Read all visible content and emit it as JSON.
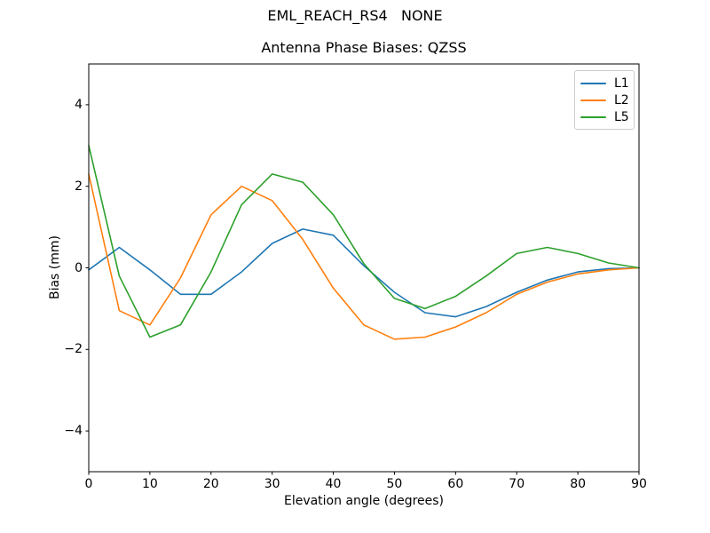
{
  "chart_data": {
    "type": "line",
    "suptitle": "EML_REACH_RS4   NONE",
    "title": "Antenna Phase Biases: QZSS",
    "xlabel": "Elevation angle (degrees)",
    "ylabel": "Bias (mm)",
    "xlim": [
      0,
      90
    ],
    "ylim": [
      -5,
      5
    ],
    "xticks": [
      0,
      10,
      20,
      30,
      40,
      50,
      60,
      70,
      80,
      90
    ],
    "xtick_labels": [
      "0",
      "10",
      "20",
      "30",
      "40",
      "50",
      "60",
      "70",
      "80",
      "90"
    ],
    "yticks": [
      -4,
      -2,
      0,
      2,
      4
    ],
    "ytick_labels": [
      "−4",
      "−2",
      "0",
      "2",
      "4"
    ],
    "grid": false,
    "background": "#ffffff",
    "axis_color": "#000000",
    "legend": {
      "position": "upper right",
      "entries": [
        "L1",
        "L2",
        "L5"
      ]
    },
    "x": [
      0,
      5,
      10,
      15,
      20,
      25,
      30,
      35,
      40,
      45,
      50,
      55,
      60,
      65,
      70,
      75,
      80,
      85,
      90
    ],
    "series": [
      {
        "name": "L1",
        "color": "#1f77b4",
        "values": [
          -0.05,
          0.5,
          -0.05,
          -0.65,
          -0.65,
          -0.1,
          0.6,
          0.95,
          0.8,
          0.05,
          -0.6,
          -1.1,
          -1.2,
          -0.95,
          -0.6,
          -0.3,
          -0.1,
          -0.02,
          0.0
        ]
      },
      {
        "name": "L2",
        "color": "#ff7f0e",
        "values": [
          2.3,
          -1.05,
          -1.4,
          -0.25,
          1.3,
          2.0,
          1.65,
          0.7,
          -0.5,
          -1.4,
          -1.75,
          -1.7,
          -1.45,
          -1.1,
          -0.65,
          -0.35,
          -0.15,
          -0.05,
          0.0
        ]
      },
      {
        "name": "L5",
        "color": "#2ca02c",
        "values": [
          3.0,
          -0.2,
          -1.7,
          -1.4,
          -0.1,
          1.55,
          2.3,
          2.1,
          1.3,
          0.1,
          -0.75,
          -1.0,
          -0.7,
          -0.2,
          0.35,
          0.5,
          0.35,
          0.12,
          0.0
        ]
      }
    ]
  }
}
